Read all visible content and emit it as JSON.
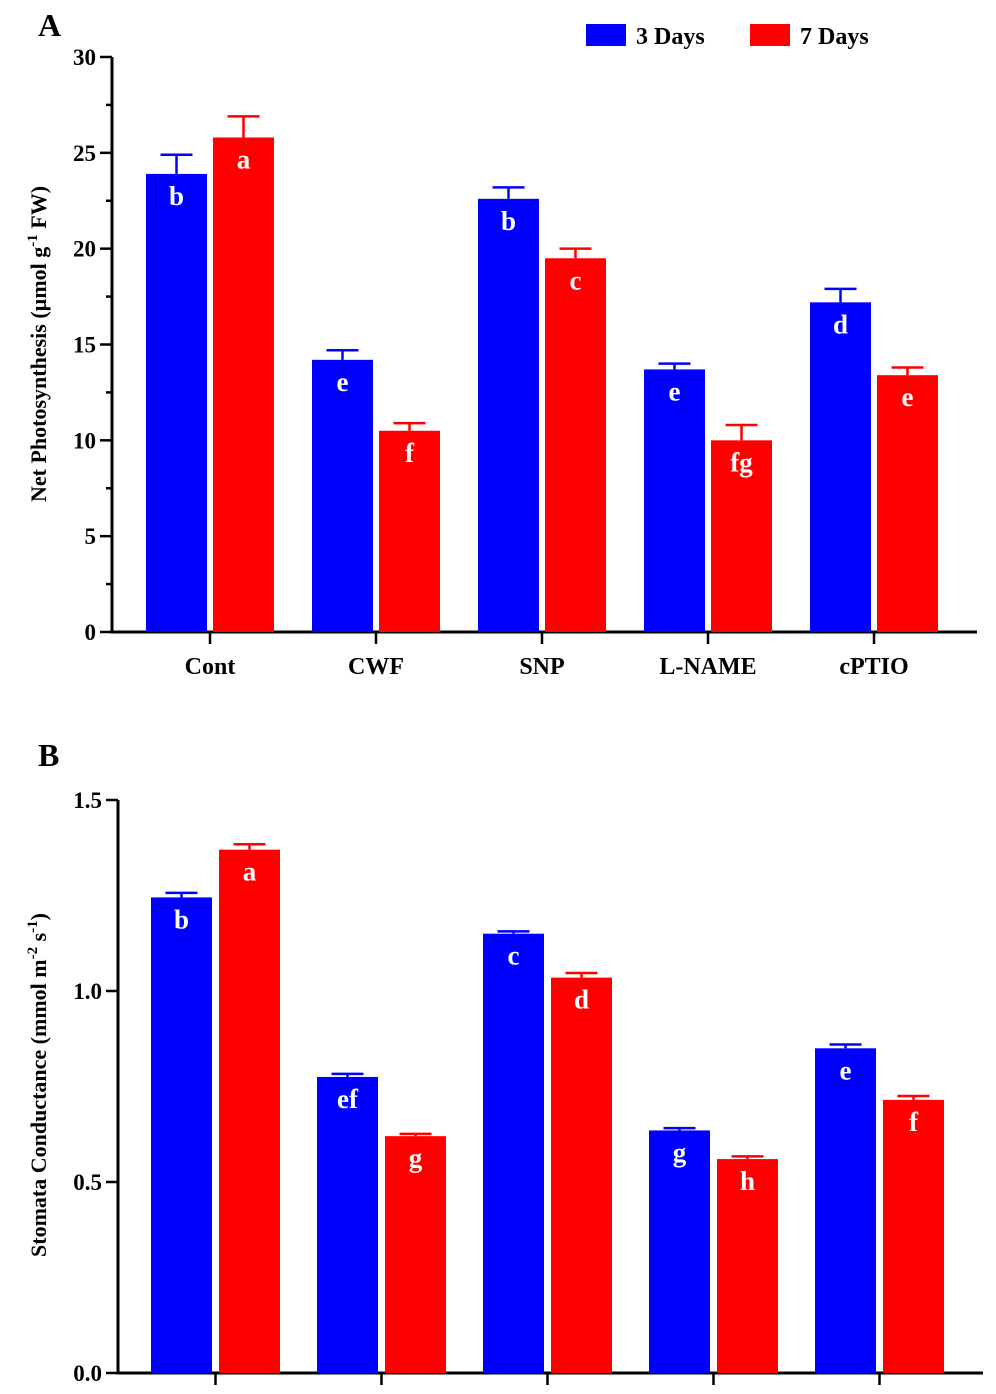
{
  "legend": {
    "items": [
      {
        "label": "3 Days",
        "color": "#0000FF"
      },
      {
        "label": "7 Days",
        "color": "#FF0000"
      }
    ],
    "placement": "top-right"
  },
  "chart_data": [
    {
      "panel_label": "A",
      "type": "bar",
      "ylabel_main": "Net Photosynthesis (µmol g",
      "ylabel_sup": "-1",
      "ylabel_end": " FW)",
      "ylim": [
        0,
        30
      ],
      "yticks": [
        "0",
        "5",
        "10",
        "15",
        "20",
        "25",
        "30"
      ],
      "categories": [
        "Cont",
        "CWF",
        "SNP",
        "L-NAME",
        "cPTIO"
      ],
      "series": [
        {
          "name": "3 Days",
          "color": "#0000FF",
          "values": [
            23.9,
            14.2,
            22.6,
            13.7,
            17.2
          ],
          "errors": [
            1.0,
            0.5,
            0.6,
            0.3,
            0.7
          ],
          "labels": [
            "b",
            "e",
            "b",
            "e",
            "d"
          ]
        },
        {
          "name": "7 Days",
          "color": "#FF0000",
          "values": [
            25.8,
            10.5,
            19.5,
            10.0,
            13.4
          ],
          "errors": [
            1.1,
            0.4,
            0.5,
            0.8,
            0.4
          ],
          "labels": [
            "a",
            "f",
            "c",
            "fg",
            "e"
          ]
        }
      ]
    },
    {
      "panel_label": "B",
      "type": "bar",
      "ylabel_main": "Stomata Conductance (mmol m",
      "ylabel_sup": "-2",
      "ylabel_mid": " s",
      "ylabel_sup2": "-1",
      "ylabel_end": ")",
      "ylim": [
        0,
        1.5
      ],
      "yticks": [
        "0.0",
        "0.5",
        "1.0",
        "1.5"
      ],
      "categories": [
        "",
        "",
        "",
        "",
        ""
      ],
      "series": [
        {
          "name": "3 Days",
          "color": "#0000FF",
          "values": [
            1.245,
            0.775,
            1.15,
            0.635,
            0.85
          ],
          "errors": [
            0.012,
            0.008,
            0.006,
            0.006,
            0.01
          ],
          "labels": [
            "b",
            "ef",
            "c",
            "g",
            "e"
          ]
        },
        {
          "name": "7 Days",
          "color": "#FF0000",
          "values": [
            1.37,
            0.62,
            1.035,
            0.56,
            0.715
          ],
          "errors": [
            0.014,
            0.006,
            0.012,
            0.007,
            0.01
          ],
          "labels": [
            "a",
            "g",
            "d",
            "h",
            "f"
          ]
        }
      ]
    }
  ]
}
